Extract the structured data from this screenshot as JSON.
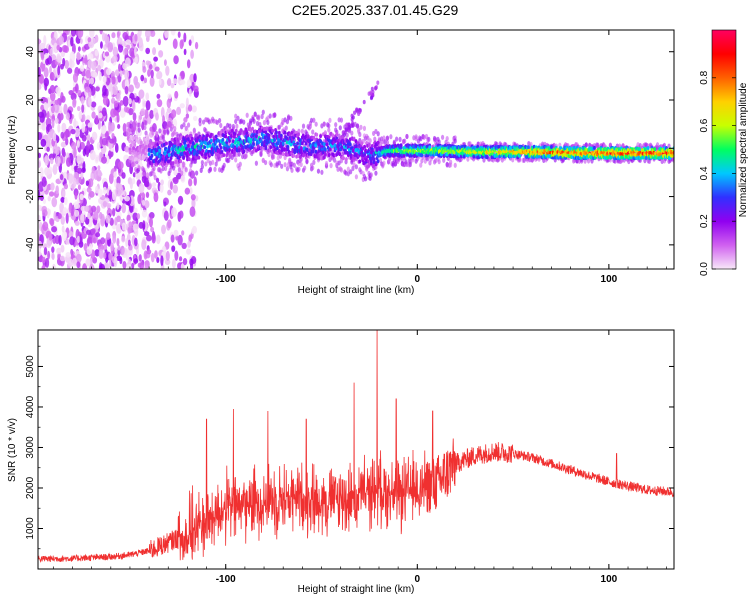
{
  "title": "C2E5.2025.337.01.45.G29",
  "colors": {
    "snr_line": "#f03030",
    "axis": "#000000",
    "background": "#ffffff",
    "colorbar": [
      "#f8e8f8",
      "#d060f0",
      "#9000f0",
      "#3030ff",
      "#00c8ff",
      "#00ff60",
      "#c8ff00",
      "#ffd000",
      "#ff6000",
      "#ff0000",
      "#ff0060"
    ]
  },
  "chart_data": [
    {
      "type": "heatmap",
      "name": "spectrogram",
      "xlabel": "Height of straight line (km)",
      "ylabel": "Frequency (Hz)",
      "xlim": [
        -198,
        134
      ],
      "ylim": [
        -50,
        49
      ],
      "xticks": [
        {
          "value": -100,
          "label": "-100"
        },
        {
          "value": 0,
          "label": "0"
        },
        {
          "value": 100,
          "label": "100"
        }
      ],
      "yticks": [
        {
          "value": 40,
          "label": "40"
        },
        {
          "value": 20,
          "label": "20"
        },
        {
          "value": 0,
          "label": "0"
        },
        {
          "value": -20,
          "label": "-20"
        },
        {
          "value": -40,
          "label": "-40"
        }
      ],
      "colorbar": {
        "label": "Normalized spectral amplitude",
        "range": [
          0,
          1
        ],
        "ticks": [
          {
            "value": 0.0,
            "label": "0.0"
          },
          {
            "value": 0.2,
            "label": "0.2"
          },
          {
            "value": 0.4,
            "label": "0.4"
          },
          {
            "value": 0.6,
            "label": "0.6"
          },
          {
            "value": 0.8,
            "label": "0.8"
          }
        ]
      },
      "ridge": [
        {
          "x": -140,
          "f": -3,
          "amp": 0.35
        },
        {
          "x": -120,
          "f": 0,
          "amp": 0.4
        },
        {
          "x": -100,
          "f": 2,
          "amp": 0.38
        },
        {
          "x": -80,
          "f": 4,
          "amp": 0.38
        },
        {
          "x": -60,
          "f": 1,
          "amp": 0.35
        },
        {
          "x": -40,
          "f": 1,
          "amp": 0.33
        },
        {
          "x": -25,
          "f": -3,
          "amp": 0.32
        },
        {
          "x": -15,
          "f": -1,
          "amp": 0.55
        },
        {
          "x": -5,
          "f": -1,
          "amp": 0.62
        },
        {
          "x": 10,
          "f": -1,
          "amp": 0.65
        },
        {
          "x": 30,
          "f": -1.5,
          "amp": 0.7
        },
        {
          "x": 60,
          "f": -1.5,
          "amp": 0.85
        },
        {
          "x": 90,
          "f": -2,
          "amp": 0.9
        },
        {
          "x": 115,
          "f": -2,
          "amp": 0.93
        },
        {
          "x": 134,
          "f": -2,
          "amp": 0.93
        }
      ]
    },
    {
      "type": "line",
      "name": "snr",
      "xlabel": "Height of straight line (km)",
      "ylabel": "SNR (10 * v/v)",
      "xlim": [
        -198,
        134
      ],
      "ylim": [
        0,
        5900
      ],
      "xticks": [
        {
          "value": -100,
          "label": "-100"
        },
        {
          "value": 0,
          "label": "0"
        },
        {
          "value": 100,
          "label": "100"
        }
      ],
      "yticks": [
        {
          "value": 1000,
          "label": "1000"
        },
        {
          "value": 2000,
          "label": "2000"
        },
        {
          "value": 3000,
          "label": "3000"
        },
        {
          "value": 4000,
          "label": "4000"
        },
        {
          "value": 5000,
          "label": "5000"
        }
      ],
      "series": [
        {
          "name": "SNR",
          "x": [
            -198,
            -180,
            -160,
            -150,
            -140,
            -130,
            -120,
            -110,
            -100,
            -90,
            -80,
            -70,
            -60,
            -50,
            -40,
            -30,
            -20,
            -10,
            0,
            10,
            20,
            30,
            40,
            50,
            60,
            70,
            80,
            90,
            100,
            110,
            120,
            134
          ],
          "y": [
            250,
            260,
            300,
            350,
            450,
            650,
            900,
            1200,
            1500,
            1600,
            1700,
            1750,
            1750,
            1700,
            1700,
            1800,
            2000,
            1800,
            2000,
            2100,
            2600,
            2800,
            2900,
            2850,
            2750,
            2600,
            2450,
            2300,
            2150,
            2050,
            1950,
            1900
          ],
          "peaks": [
            {
              "x": -110,
              "y": 3700
            },
            {
              "x": -96,
              "y": 3950
            },
            {
              "x": -78,
              "y": 3900
            },
            {
              "x": -58,
              "y": 3700
            },
            {
              "x": -33,
              "y": 4600
            },
            {
              "x": -21,
              "y": 5900
            },
            {
              "x": -11,
              "y": 4200
            },
            {
              "x": 8,
              "y": 3900
            },
            {
              "x": 104,
              "y": 2850
            }
          ]
        }
      ]
    }
  ]
}
